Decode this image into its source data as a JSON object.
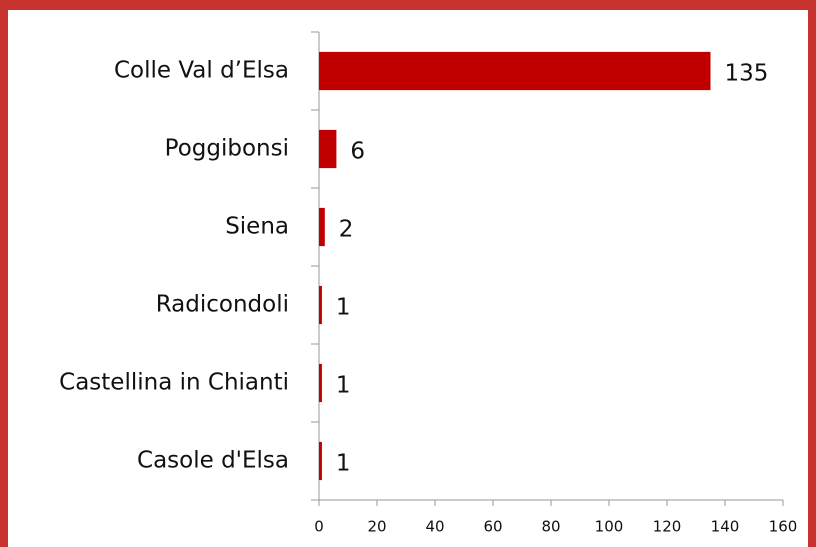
{
  "chart_data": {
    "type": "bar",
    "orientation": "horizontal",
    "categories": [
      "Colle Val d’Elsa",
      "Poggibonsi",
      "Siena",
      "Radicondoli",
      "Castellina in Chianti",
      "Casole d'Elsa"
    ],
    "values": [
      135,
      6,
      2,
      1,
      1,
      1
    ],
    "color": "#c00000",
    "xlim": [
      0,
      160
    ],
    "xticks": [
      0,
      20,
      40,
      60,
      80,
      100,
      120,
      140,
      160
    ],
    "grid": false
  }
}
